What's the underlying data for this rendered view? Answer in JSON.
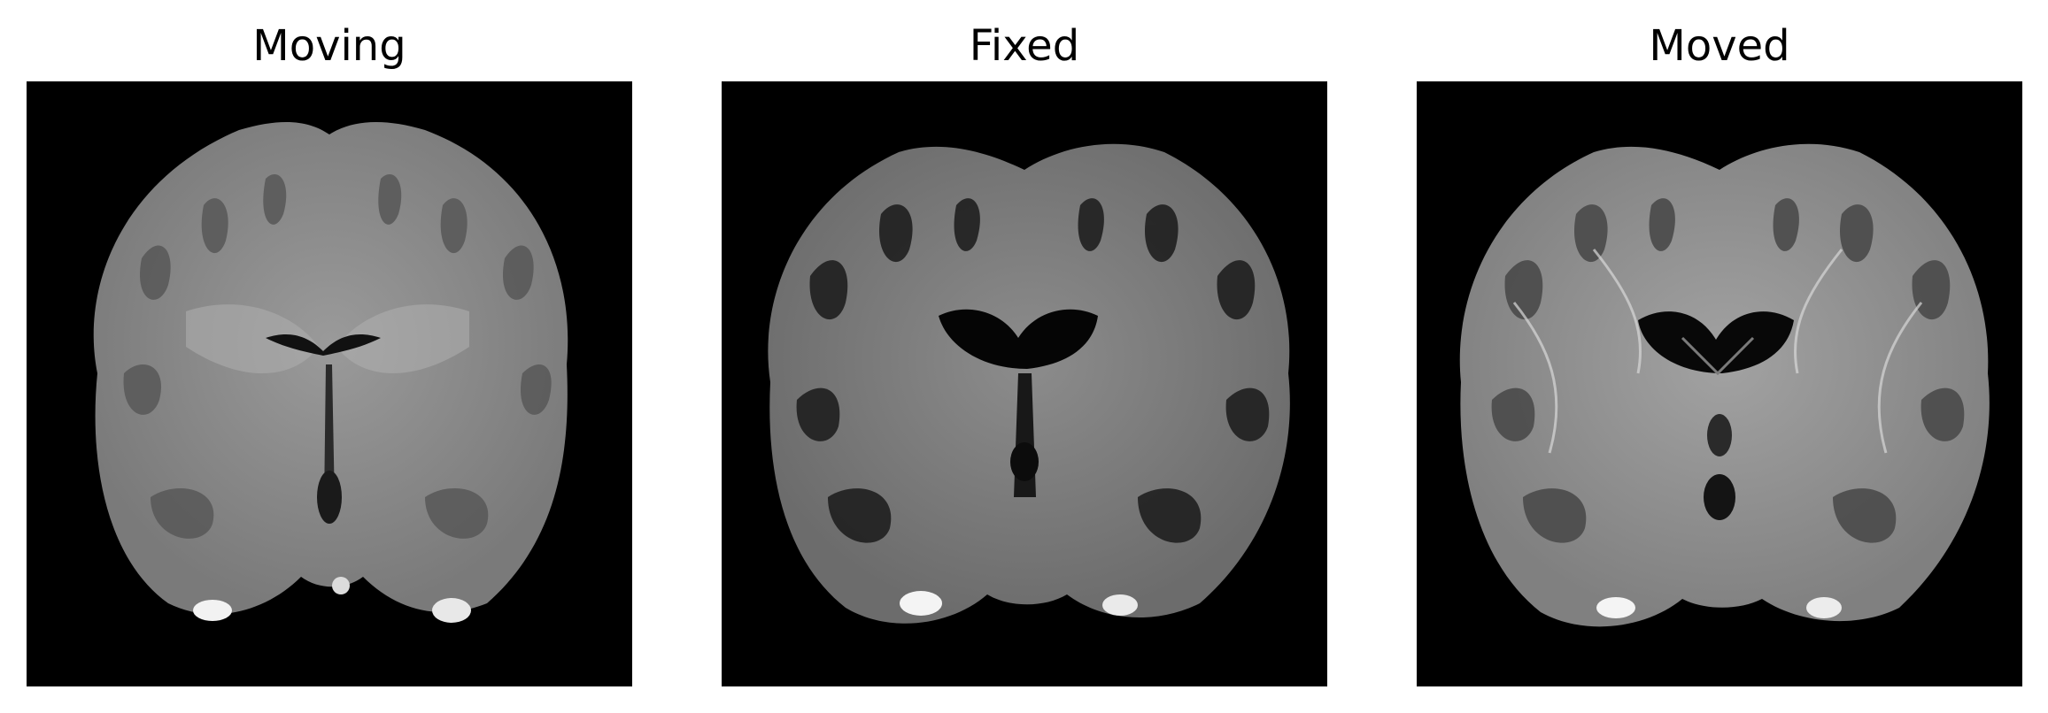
{
  "figure": {
    "panels": [
      {
        "title": "Moving"
      },
      {
        "title": "Fixed"
      },
      {
        "title": "Moved"
      }
    ]
  }
}
